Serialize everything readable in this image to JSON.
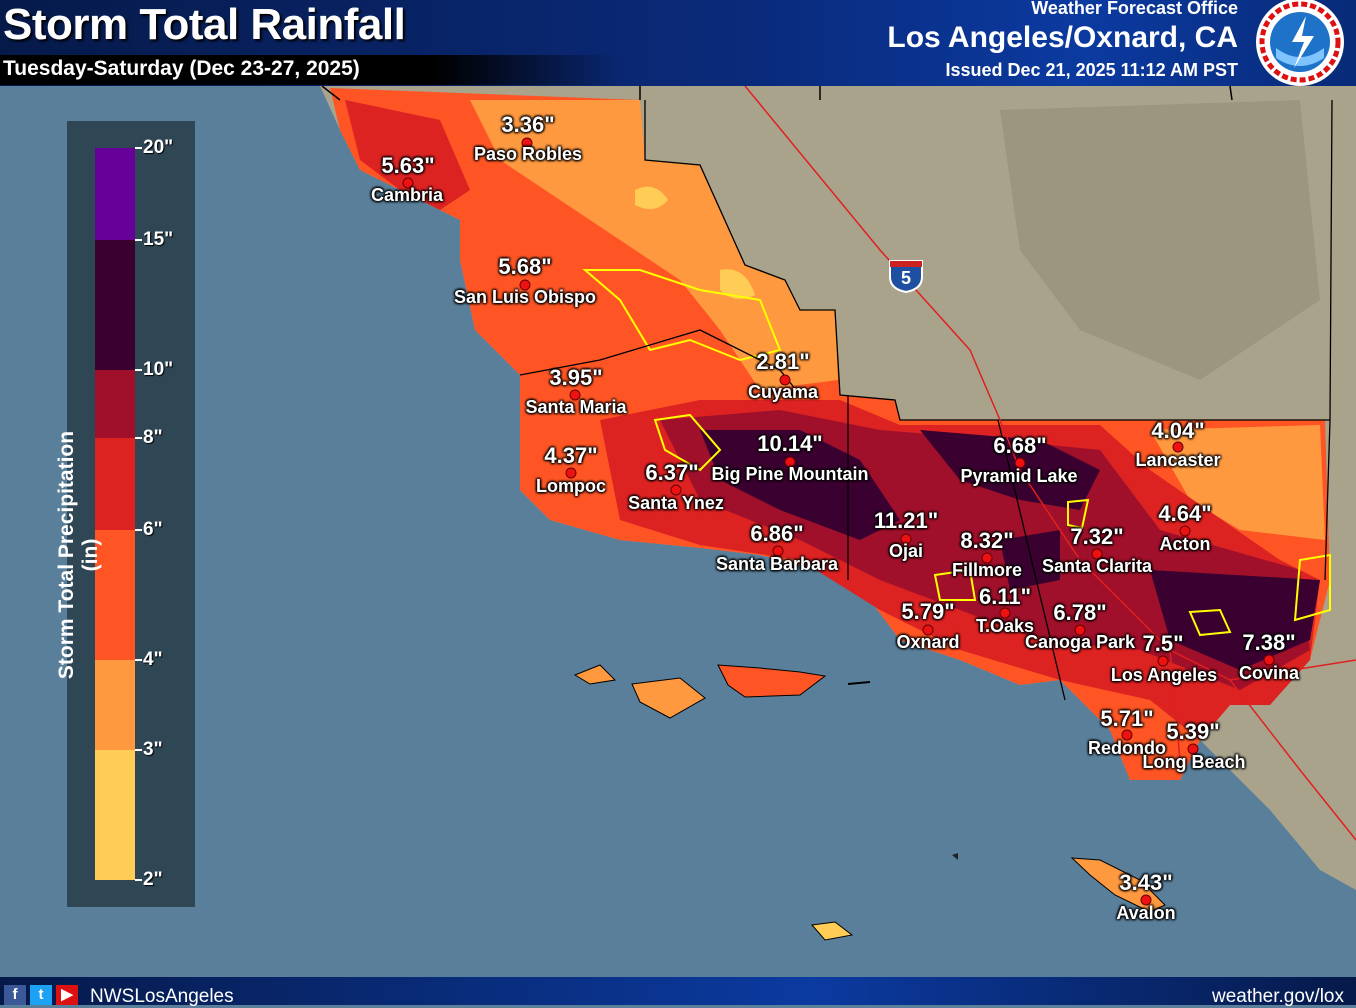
{
  "header": {
    "title": "Storm Total Rainfall",
    "subtitle": "Tuesday-Saturday (Dec 23-27, 2025)",
    "office_label": "Weather Forecast Office",
    "office_name": "Los Angeles/Oxnard, CA",
    "issued": "Issued Dec 21, 2025 11:12 AM PST",
    "logo": "NWS National Weather Service logo"
  },
  "legend": {
    "title": "Storm Total Precipitation (in)",
    "ticks": [
      "20\"",
      "15\"",
      "10\"",
      "8\"",
      "6\"",
      "4\"",
      "3\"",
      "2\""
    ],
    "bins": [
      {
        "range": "15-20",
        "color": "#660099"
      },
      {
        "range": "10-15",
        "color": "#3a0030"
      },
      {
        "range": "8-10",
        "color": "#a0102a"
      },
      {
        "range": "6-8",
        "color": "#dd2222"
      },
      {
        "range": "4-6",
        "color": "#ff5525"
      },
      {
        "range": "3-4",
        "color": "#ff9940"
      },
      {
        "range": "2-3",
        "color": "#ffcc55"
      }
    ]
  },
  "map": {
    "interstate": "5",
    "colors": {
      "ocean": "#5a7f9a",
      "land": "#a9a38c",
      "burn_scar": "#ffff00",
      "county_line": "#000000",
      "roads": "#e02020"
    },
    "points": [
      {
        "name": "Paso Robles",
        "value": "3.36\""
      },
      {
        "name": "Cambria",
        "value": "5.63\""
      },
      {
        "name": "San Luis Obispo",
        "value": "5.68\""
      },
      {
        "name": "Cuyama",
        "value": "2.81\""
      },
      {
        "name": "Santa Maria",
        "value": "3.95\""
      },
      {
        "name": "Lompoc",
        "value": "4.37\""
      },
      {
        "name": "Santa Ynez",
        "value": "6.37\""
      },
      {
        "name": "Big Pine Mountain",
        "value": "10.14\""
      },
      {
        "name": "Santa Barbara",
        "value": "6.86\""
      },
      {
        "name": "Ojai",
        "value": "11.21\""
      },
      {
        "name": "Pyramid Lake",
        "value": "6.68\""
      },
      {
        "name": "Lancaster",
        "value": "4.04\""
      },
      {
        "name": "Acton",
        "value": "4.64\""
      },
      {
        "name": "Santa Clarita",
        "value": "7.32\""
      },
      {
        "name": "Fillmore",
        "value": "8.32\""
      },
      {
        "name": "T.Oaks",
        "value": "6.11\""
      },
      {
        "name": "Oxnard",
        "value": "5.79\""
      },
      {
        "name": "Canoga Park",
        "value": "6.78\""
      },
      {
        "name": "Los Angeles",
        "value": "7.5\""
      },
      {
        "name": "Covina",
        "value": "7.38\""
      },
      {
        "name": "Redondo",
        "value": "5.71\""
      },
      {
        "name": "Long Beach",
        "value": "5.39\""
      },
      {
        "name": "Avalon",
        "value": "3.43\""
      }
    ]
  },
  "footer": {
    "handle": "NWSLosAngeles",
    "url": "weather.gov/lox",
    "social_icons": [
      "facebook-icon",
      "twitter-icon",
      "youtube-icon"
    ]
  }
}
